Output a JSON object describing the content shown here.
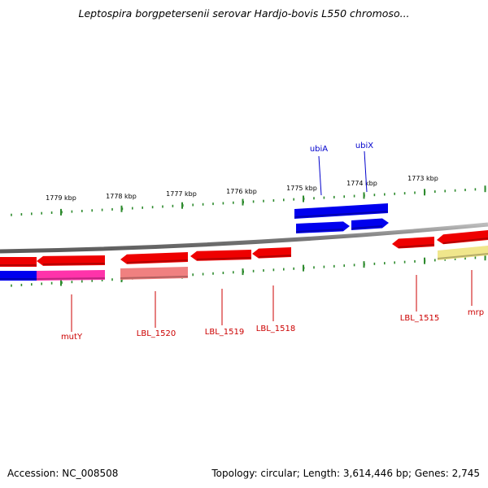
{
  "title": "Leptospira borgpetersenii serovar Hardjo-bovis L550 chromoso...",
  "footer": {
    "accession": "Accession: NC_008508",
    "summary": "Topology: circular; Length: 3,614,446 bp; Genes: 2,745"
  },
  "colors": {
    "backbone": "#8a8a8a",
    "tick": "#2e8b2e",
    "gene_red": "#ee0000",
    "gene_blue": "#0000ee",
    "gene_magenta": "#ff33aa",
    "gene_salmon": "#f08080",
    "gene_khaki": "#f0e68c",
    "label_red": "#cc0000",
    "label_blue": "#0000cc"
  },
  "kbp_labels": [
    "1779 kbp",
    "1778 kbp",
    "1777 kbp",
    "1776 kbp",
    "1775 kbp",
    "1774 kbp",
    "1773 kbp"
  ],
  "gene_labels": [
    {
      "name": "mutY",
      "color": "red"
    },
    {
      "name": "LBL_1520",
      "color": "red"
    },
    {
      "name": "LBL_1519",
      "color": "red"
    },
    {
      "name": "LBL_1518",
      "color": "red"
    },
    {
      "name": "LBL_1515",
      "color": "red"
    },
    {
      "name": "mrp",
      "color": "red"
    },
    {
      "name": "ubiA",
      "color": "blue"
    },
    {
      "name": "ubiX",
      "color": "blue"
    }
  ]
}
